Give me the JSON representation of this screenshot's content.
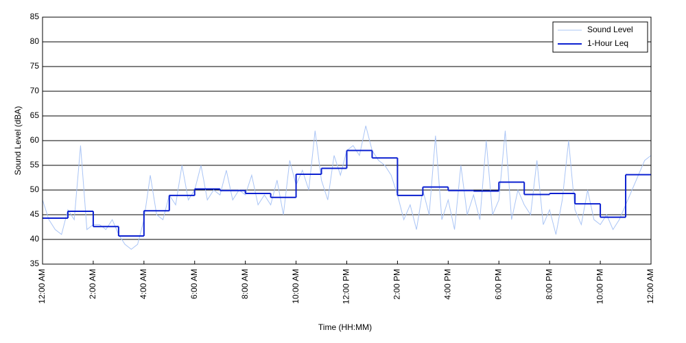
{
  "chart_data": {
    "type": "line",
    "xlabel": "Time (HH:MM)",
    "ylabel": "Sound Level (dBA)",
    "xlim": [
      0,
      24
    ],
    "xticks": [
      {
        "value": 0,
        "label": "12:00 AM"
      },
      {
        "value": 2,
        "label": "2:00 AM"
      },
      {
        "value": 4,
        "label": "4:00 AM"
      },
      {
        "value": 6,
        "label": "6:00 AM"
      },
      {
        "value": 8,
        "label": "8:00 AM"
      },
      {
        "value": 10,
        "label": "10:00 AM"
      },
      {
        "value": 12,
        "label": "12:00 PM"
      },
      {
        "value": 14,
        "label": "2:00 PM"
      },
      {
        "value": 16,
        "label": "4:00 PM"
      },
      {
        "value": 18,
        "label": "6:00 PM"
      },
      {
        "value": 20,
        "label": "8:00 PM"
      },
      {
        "value": 22,
        "label": "10:00 PM"
      },
      {
        "value": 24,
        "label": "12:00 AM"
      }
    ],
    "ylim": [
      35,
      85
    ],
    "yticks": [
      35,
      40,
      45,
      50,
      55,
      60,
      65,
      70,
      75,
      80,
      85
    ],
    "grid": true,
    "legend": "upper right",
    "series": [
      {
        "name": "Sound Level",
        "color": "#a9c4f5",
        "x": [
          0,
          0.25,
          0.5,
          0.75,
          1,
          1.25,
          1.5,
          1.75,
          2,
          2.25,
          2.5,
          2.75,
          3,
          3.25,
          3.5,
          3.75,
          4,
          4.25,
          4.5,
          4.75,
          5,
          5.25,
          5.5,
          5.75,
          6,
          6.25,
          6.5,
          6.75,
          7,
          7.25,
          7.5,
          7.75,
          8,
          8.25,
          8.5,
          8.75,
          9,
          9.25,
          9.5,
          9.75,
          10,
          10.25,
          10.5,
          10.75,
          11,
          11.25,
          11.5,
          11.75,
          12,
          12.25,
          12.5,
          12.75,
          13,
          13.25,
          13.5,
          13.75,
          14,
          14.25,
          14.5,
          14.75,
          15,
          15.25,
          15.5,
          15.75,
          16,
          16.25,
          16.5,
          16.75,
          17,
          17.25,
          17.5,
          17.75,
          18,
          18.25,
          18.5,
          18.75,
          19,
          19.25,
          19.5,
          19.75,
          20,
          20.25,
          20.5,
          20.75,
          21,
          21.25,
          21.5,
          21.75,
          22,
          22.25,
          22.5,
          22.75,
          23,
          23.25,
          23.5,
          23.75,
          24
        ],
        "values": [
          48,
          44,
          42,
          41,
          46,
          44,
          59,
          42,
          43,
          43,
          42,
          44,
          41,
          39,
          38,
          39,
          44,
          53,
          45,
          44,
          49,
          47,
          55,
          48,
          50,
          55,
          48,
          50,
          49,
          54,
          48,
          50,
          49,
          53,
          47,
          49,
          47,
          52,
          45,
          56,
          51,
          54,
          50,
          62,
          52,
          48,
          57,
          53,
          58,
          59,
          57,
          63,
          58,
          56,
          55,
          53,
          49,
          44,
          47,
          42,
          50,
          45,
          61,
          44,
          48,
          42,
          55,
          45,
          49,
          44,
          60,
          45,
          48,
          62,
          44,
          50,
          47,
          45,
          56,
          43,
          46,
          41,
          48,
          60,
          46,
          43,
          50,
          44,
          43,
          45,
          42,
          44,
          47,
          50,
          53,
          56,
          57
        ]
      },
      {
        "name": "1-Hour Leq",
        "color": "#0a1fd0",
        "x": [
          0,
          1,
          2,
          3,
          4,
          5,
          6,
          7,
          8,
          9,
          10,
          11,
          12,
          13,
          14,
          15,
          16,
          17,
          18,
          19,
          20,
          21,
          22,
          23
        ],
        "values": [
          44.3,
          45.7,
          42.6,
          40.7,
          45.8,
          48.9,
          50.2,
          49.9,
          49.3,
          48.5,
          53.2,
          54.4,
          58.0,
          56.5,
          48.9,
          50.6,
          49.9,
          49.8,
          51.6,
          49.1,
          49.3,
          47.2,
          44.5,
          53.1
        ]
      }
    ]
  }
}
